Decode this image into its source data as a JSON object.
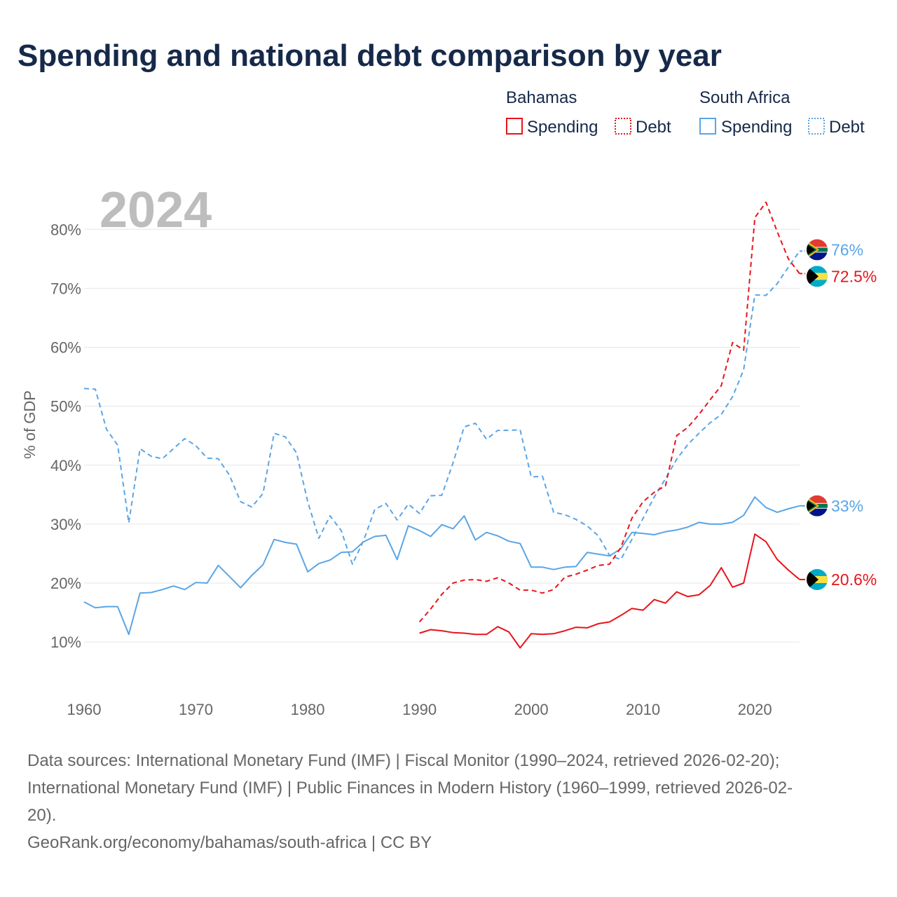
{
  "title": "Spending and national debt comparison by year",
  "year_label": "2024",
  "legend": {
    "groups": [
      {
        "country": "Bahamas",
        "color": "#e8141b",
        "items": [
          {
            "label": "Spending",
            "style": "solid"
          },
          {
            "label": "Debt",
            "style": "dotted"
          }
        ]
      },
      {
        "country": "South Africa",
        "color": "#5aa5e6",
        "items": [
          {
            "label": "Spending",
            "style": "solid"
          },
          {
            "label": "Debt",
            "style": "dotted"
          }
        ]
      }
    ]
  },
  "end_labels": [
    {
      "series": "sa_debt",
      "text": "76%",
      "flag": "south-africa-flag"
    },
    {
      "series": "bs_debt",
      "text": "72.5%",
      "flag": "bahamas-flag"
    },
    {
      "series": "sa_spending",
      "text": "33%",
      "flag": "south-africa-flag"
    },
    {
      "series": "bs_spending",
      "text": "20.6%",
      "flag": "bahamas-flag"
    }
  ],
  "sources": {
    "line1": "Data sources: International Monetary Fund (IMF) | Fiscal Monitor (1990–2024, retrieved 2026-02-20);",
    "line2": "International Monetary Fund (IMF) | Public Finances in Modern History (1960–1999, retrieved 2026-02-",
    "line3": "20).",
    "line4": "GeoRank.org/economy/bahamas/south-africa | CC BY"
  },
  "chart_data": {
    "type": "line",
    "title": "Spending and national debt comparison by year",
    "xlabel": "",
    "ylabel": "% of GDP",
    "xlim": [
      1960,
      2024
    ],
    "ylim": [
      3,
      88
    ],
    "x_ticks": [
      1960,
      1970,
      1980,
      1990,
      2000,
      2010,
      2020
    ],
    "y_ticks": [
      10,
      20,
      30,
      40,
      50,
      60,
      70,
      80
    ],
    "y_tick_labels": [
      "10%",
      "20%",
      "30%",
      "40%",
      "50%",
      "60%",
      "70%",
      "80%"
    ],
    "series": [
      {
        "id": "sa_debt",
        "name": "South Africa Debt",
        "color": "#5aa5e6",
        "style": "dashed",
        "start": 1960,
        "values": [
          53.0,
          52.9,
          46.1,
          43.4,
          30.2,
          42.8,
          41.5,
          41.1,
          42.8,
          44.5,
          43.3,
          41.2,
          41.1,
          38.3,
          33.8,
          32.9,
          35.2,
          45.4,
          44.8,
          42.1,
          33.8,
          27.6,
          31.4,
          28.9,
          23.2,
          27.2,
          32.5,
          33.5,
          30.7,
          33.4,
          31.8,
          34.8,
          34.9,
          40.4,
          46.5,
          47.1,
          44.4,
          45.9,
          45.9,
          46.0,
          38.0,
          38.1,
          32.0,
          31.6,
          30.8,
          29.7,
          28.0,
          24.7,
          24.0,
          27.4,
          31.0,
          34.6,
          37.7,
          41.0,
          43.5,
          45.4,
          47.2,
          48.6,
          51.6,
          56.2,
          68.9,
          68.8,
          70.8,
          73.6,
          76.3
        ]
      },
      {
        "id": "sa_spending",
        "name": "South Africa Spending",
        "color": "#5aa5e6",
        "style": "solid",
        "start": 1960,
        "values": [
          16.8,
          15.8,
          16.0,
          16.0,
          11.3,
          18.3,
          18.4,
          18.9,
          19.5,
          18.9,
          20.1,
          20.0,
          23.0,
          21.1,
          19.2,
          21.3,
          23.1,
          27.4,
          26.9,
          26.6,
          21.9,
          23.3,
          23.9,
          25.2,
          25.3,
          27.0,
          27.9,
          28.1,
          24.0,
          29.7,
          28.9,
          27.9,
          29.9,
          29.2,
          31.4,
          27.3,
          28.6,
          28.0,
          27.1,
          26.7,
          22.7,
          22.7,
          22.3,
          22.7,
          22.8,
          25.2,
          24.9,
          24.6,
          25.8,
          28.6,
          28.4,
          28.2,
          28.7,
          29.0,
          29.5,
          30.3,
          30.0,
          30.0,
          30.3,
          31.5,
          34.6,
          32.8,
          32.0,
          32.6,
          33.1
        ]
      },
      {
        "id": "bs_debt",
        "name": "Bahamas Debt",
        "color": "#e8141b",
        "style": "dashed",
        "start": 1990,
        "values": [
          13.4,
          15.6,
          18.1,
          20.0,
          20.5,
          20.6,
          20.3,
          20.9,
          20.0,
          18.8,
          18.8,
          18.3,
          18.9,
          21.0,
          21.5,
          22.2,
          23.0,
          23.2,
          26.0,
          31.0,
          33.8,
          35.4,
          36.5,
          45.0,
          46.4,
          48.6,
          51.1,
          53.5,
          60.8,
          59.5,
          82.0,
          84.6,
          79.6,
          75.0,
          72.5
        ]
      },
      {
        "id": "bs_spending",
        "name": "Bahamas Spending",
        "color": "#e8141b",
        "style": "solid",
        "start": 1990,
        "values": [
          11.5,
          12.1,
          11.9,
          11.6,
          11.5,
          11.3,
          11.3,
          12.6,
          11.7,
          9.0,
          11.4,
          11.3,
          11.4,
          11.9,
          12.5,
          12.4,
          13.1,
          13.4,
          14.5,
          15.7,
          15.4,
          17.2,
          16.6,
          18.5,
          17.7,
          18.0,
          19.6,
          22.6,
          19.3,
          20.0,
          28.3,
          27.0,
          24.0,
          22.2,
          20.6
        ]
      }
    ]
  }
}
